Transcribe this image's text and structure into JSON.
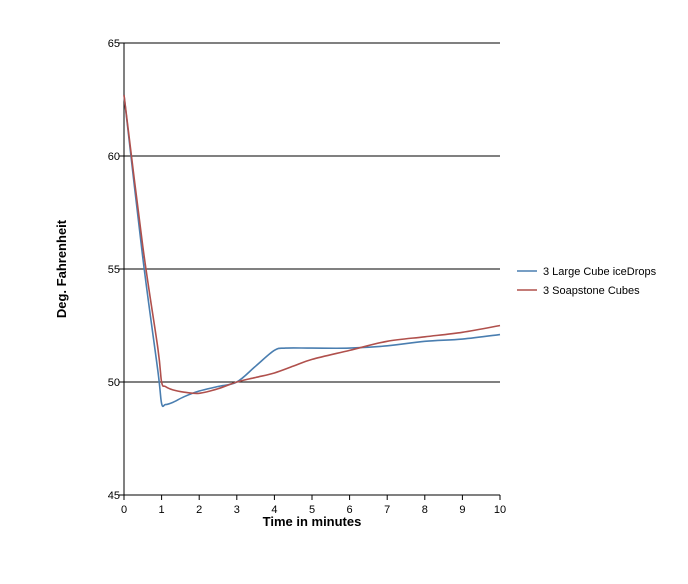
{
  "chart_data": {
    "type": "line",
    "title": "",
    "xlabel": "Time in minutes",
    "ylabel": "Deg. Fahrenheit",
    "xlim": [
      0,
      10
    ],
    "ylim": [
      45,
      65
    ],
    "xticks": [
      0,
      1,
      2,
      3,
      4,
      5,
      6,
      7,
      8,
      9,
      10
    ],
    "yticks": [
      45,
      50,
      55,
      60,
      65
    ],
    "grid": "horizontal",
    "legend_position": "right",
    "series": [
      {
        "name": "3 Large Cube iceDrops",
        "color": "#4a7eb0",
        "x": [
          0,
          0.5,
          0.9,
          1.0,
          1.1,
          1.3,
          1.6,
          2.0,
          2.5,
          3.0,
          3.5,
          4.0,
          4.3,
          5.0,
          6.0,
          7.0,
          8.0,
          9.0,
          10.0
        ],
        "y": [
          62.7,
          55.5,
          50.5,
          49.05,
          49.0,
          49.1,
          49.35,
          49.6,
          49.8,
          50.0,
          50.7,
          51.4,
          51.5,
          51.5,
          51.5,
          51.6,
          51.8,
          51.9,
          52.1
        ]
      },
      {
        "name": "3 Soapstone Cubes",
        "color": "#b0504c",
        "x": [
          0,
          0.5,
          0.9,
          1.0,
          1.1,
          1.3,
          1.6,
          2.0,
          2.5,
          3.0,
          3.5,
          4.0,
          4.5,
          5.0,
          6.0,
          7.0,
          8.0,
          9.0,
          10.0
        ],
        "y": [
          62.7,
          56.0,
          51.5,
          50.0,
          49.8,
          49.65,
          49.55,
          49.5,
          49.7,
          50.0,
          50.2,
          50.4,
          50.7,
          51.0,
          51.4,
          51.8,
          52.0,
          52.2,
          52.5
        ]
      }
    ]
  }
}
